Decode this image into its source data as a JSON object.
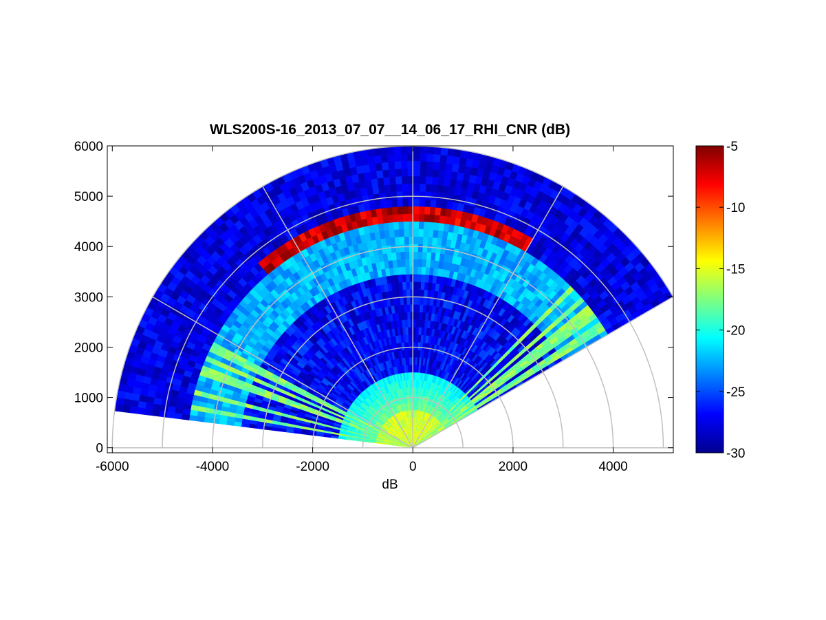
{
  "chart_data": {
    "type": "heatmap",
    "subtype": "polar-rhi-scan",
    "title": "WLS200S-16_2013_07_07__14_06_17_RHI_CNR (dB)",
    "xlabel": "dB",
    "ylabel": "",
    "xlim": [
      -6100,
      5200
    ],
    "ylim": [
      -100,
      6000
    ],
    "xticks": [
      -6000,
      -4000,
      -2000,
      0,
      2000,
      4000
    ],
    "yticks": [
      0,
      1000,
      2000,
      3000,
      4000,
      5000,
      6000
    ],
    "grid": true,
    "range_rings": [
      1000,
      2000,
      3000,
      4000,
      5000,
      6000
    ],
    "spokes_deg": [
      0,
      30,
      60,
      90,
      120,
      150,
      180
    ],
    "scan_sector_deg": [
      30,
      173
    ],
    "max_range": 6000,
    "colorbar": {
      "colormap": "jet",
      "clim": [
        -30,
        -5
      ],
      "ticks": [
        -5,
        -10,
        -15,
        -20,
        -25,
        -30
      ]
    },
    "features": [
      {
        "description_from_image": "high CNR band",
        "range_m": [
          4550,
          4800
        ],
        "elevation_deg": [
          60,
          130
        ],
        "value_db": -6
      },
      {
        "description_from_image": "near-field aerosol layer",
        "range_m": [
          0,
          1500
        ],
        "value_db": -19
      }
    ]
  }
}
